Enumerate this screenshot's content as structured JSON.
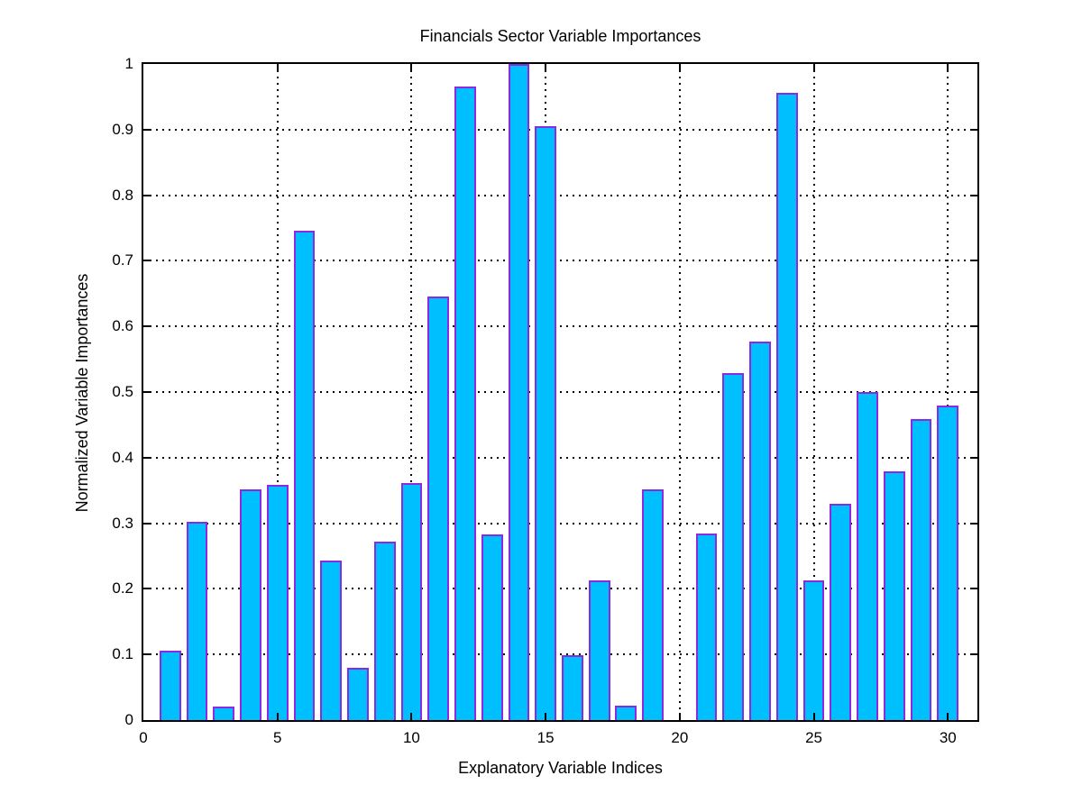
{
  "chart_data": {
    "type": "bar",
    "title": "Financials Sector Variable Importances",
    "xlabel": "Explanatory Variable Indices",
    "ylabel": "Normalized Variable Importances",
    "x": [
      1,
      2,
      3,
      4,
      5,
      6,
      7,
      8,
      9,
      10,
      11,
      12,
      13,
      14,
      15,
      16,
      17,
      18,
      19,
      20,
      21,
      22,
      23,
      24,
      25,
      26,
      27,
      28,
      29,
      30
    ],
    "values": [
      0.106,
      0.302,
      0.021,
      0.352,
      0.359,
      0.746,
      0.243,
      0.08,
      0.272,
      0.361,
      0.645,
      0.965,
      0.283,
      1.0,
      0.905,
      0.099,
      0.213,
      0.022,
      0.351,
      0.0,
      0.284,
      0.529,
      0.577,
      0.956,
      0.213,
      0.33,
      0.5,
      0.379,
      0.459,
      0.48
    ],
    "xlim": [
      0,
      31.1
    ],
    "ylim": [
      0,
      1
    ],
    "xticks": [
      0,
      5,
      10,
      15,
      20,
      25,
      30
    ],
    "xtick_labels": [
      "0",
      "5",
      "10",
      "15",
      "20",
      "25",
      "30"
    ],
    "yticks": [
      0,
      0.1,
      0.2,
      0.3,
      0.4,
      0.5,
      0.6,
      0.7,
      0.8,
      0.9,
      1
    ],
    "ytick_labels": [
      "0",
      "0.1",
      "0.2",
      "0.3",
      "0.4",
      "0.5",
      "0.6",
      "0.7",
      "0.8",
      "0.9",
      "1"
    ],
    "bar_width": 0.8,
    "grid": "dotted",
    "legend": "none",
    "colors": {
      "bar_fill": "#00BFFF",
      "bar_edge": "#8A2BE2",
      "axis": "#000000",
      "grid": "#000000",
      "background": "#FFFFFF"
    }
  }
}
